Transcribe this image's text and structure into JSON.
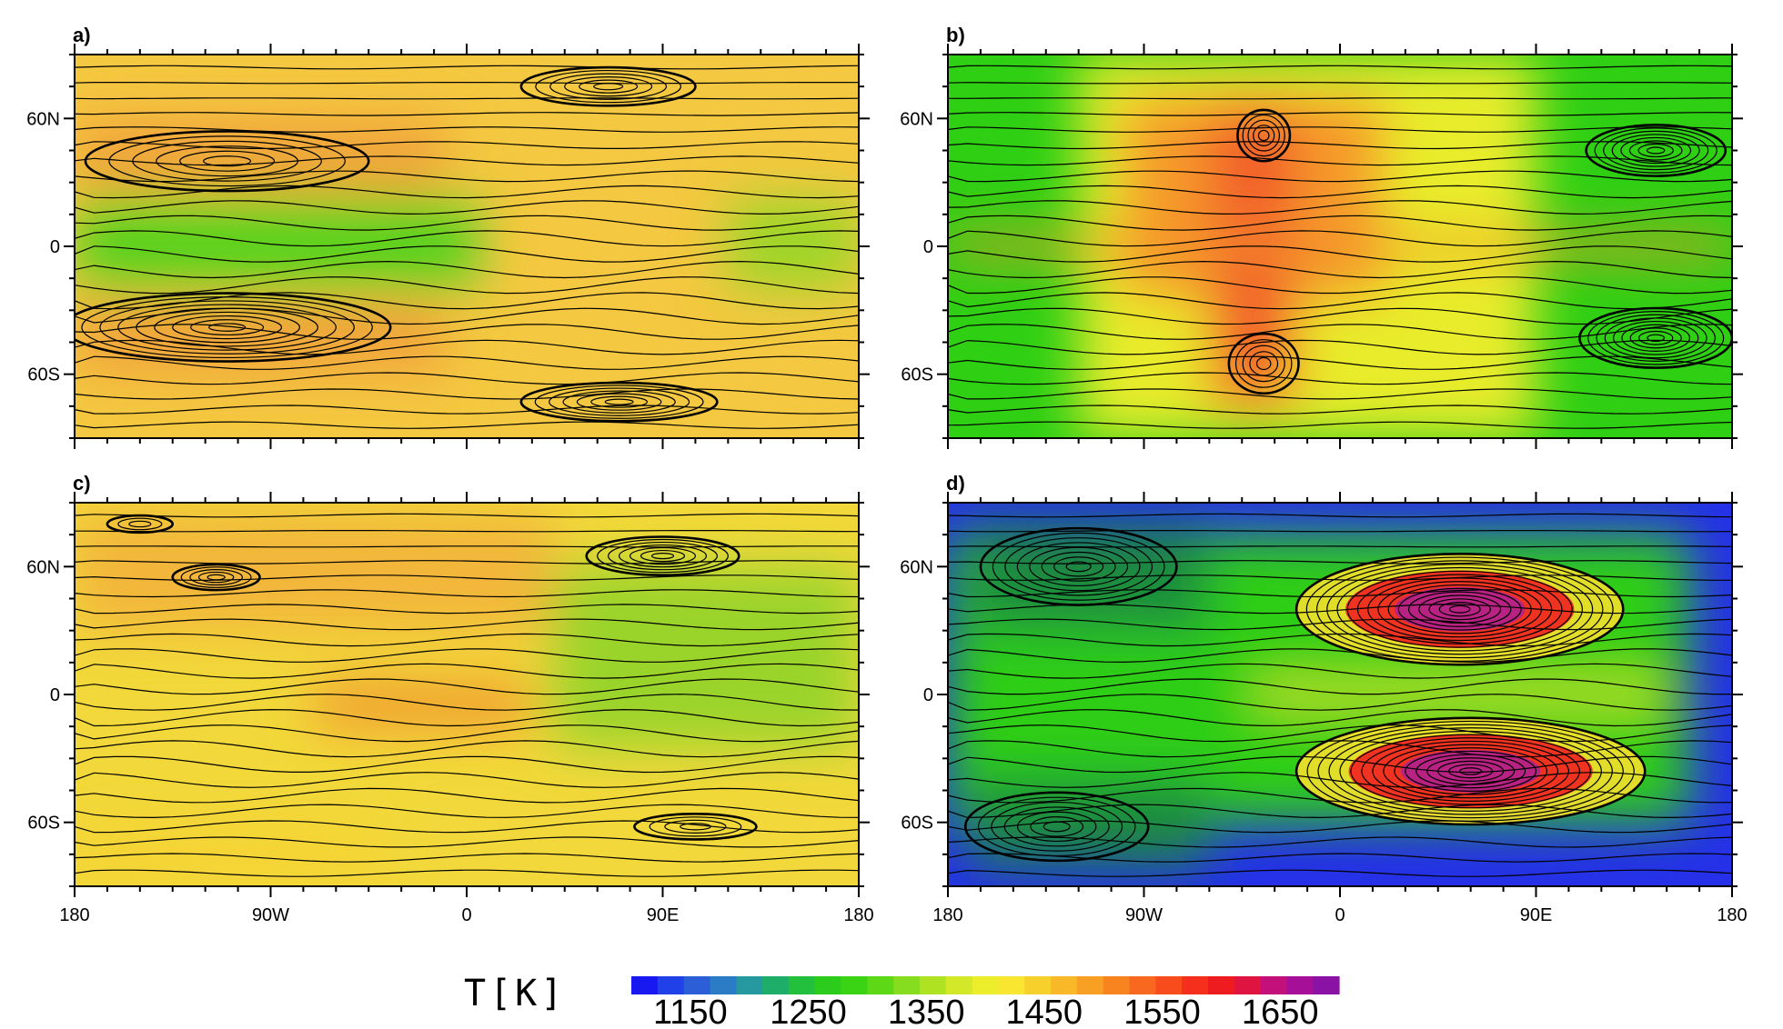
{
  "chart_data": [
    {
      "type": "heatmap",
      "panel_label": "a)",
      "xlabels": [
        "180",
        "90W",
        "0",
        "90E",
        "180"
      ],
      "ylabels": [
        "60N",
        "0",
        "60S"
      ],
      "xlim": [
        -180,
        180
      ],
      "ylim": [
        -90,
        90
      ],
      "fill": "#f4c840",
      "zones": [
        {
          "lon": [
            -180,
            5
          ],
          "lat": [
            -20,
            22
          ],
          "color": "#55d21e"
        },
        {
          "lon": [
            -180,
            -10
          ],
          "lat": [
            25,
            60
          ],
          "color": "#f1a43a"
        },
        {
          "lon": [
            -180,
            -10
          ],
          "lat": [
            -60,
            -25
          ],
          "color": "#f1a43a"
        },
        {
          "lon": [
            120,
            180
          ],
          "lat": [
            -20,
            22
          ],
          "color": "#9bd628"
        }
      ],
      "vortices": [
        {
          "lon": -110,
          "lat": 40,
          "rx": 65,
          "ry": 14,
          "rings": 6
        },
        {
          "lon": -110,
          "lat": -38,
          "rx": 75,
          "ry": 16,
          "rings": 9
        },
        {
          "lon": 65,
          "lat": 75,
          "rx": 40,
          "ry": 9,
          "rings": 6
        },
        {
          "lon": 70,
          "lat": -73,
          "rx": 45,
          "ry": 9,
          "rings": 7
        }
      ]
    },
    {
      "type": "heatmap",
      "panel_label": "b)",
      "xlabels": [
        "180",
        "90W",
        "0",
        "90E",
        "180"
      ],
      "ylabels": [
        "60N",
        "0",
        "60S"
      ],
      "xlim": [
        -180,
        180
      ],
      "ylim": [
        -90,
        90
      ],
      "fill": "#2fcf14",
      "zones": [
        {
          "lon": [
            -120,
            90
          ],
          "lat": [
            -90,
            90
          ],
          "color": "#e8ec2a"
        },
        {
          "lon": [
            -100,
            20
          ],
          "lat": [
            -25,
            70
          ],
          "color": "#f59a2a"
        },
        {
          "lon": [
            -60,
            -20
          ],
          "lat": [
            -75,
            70
          ],
          "color": "#f2602a"
        },
        {
          "lon": [
            -180,
            180
          ],
          "lat": [
            -5,
            5
          ],
          "color": "#f4942c"
        }
      ],
      "vortices": [
        {
          "lon": 145,
          "lat": 45,
          "rx": 32,
          "ry": 12,
          "rings": 8
        },
        {
          "lon": 145,
          "lat": -43,
          "rx": 35,
          "ry": 14,
          "rings": 9
        },
        {
          "lon": -35,
          "lat": 52,
          "rx": 12,
          "ry": 12,
          "rings": 5
        },
        {
          "lon": -35,
          "lat": -55,
          "rx": 16,
          "ry": 14,
          "rings": 5
        }
      ]
    },
    {
      "type": "heatmap",
      "panel_label": "c)",
      "xlabels": [
        "180",
        "90W",
        "0",
        "90E",
        "180"
      ],
      "ylabels": [
        "60N",
        "0",
        "60S"
      ],
      "xlim": [
        -180,
        180
      ],
      "ylim": [
        -90,
        90
      ],
      "fill": "#f2d83a",
      "zones": [
        {
          "lon": [
            40,
            180
          ],
          "lat": [
            -25,
            60
          ],
          "color": "#9ad42c"
        },
        {
          "lon": [
            -180,
            40
          ],
          "lat": [
            30,
            85
          ],
          "color": "#f2b63a"
        },
        {
          "lon": [
            -70,
            30
          ],
          "lat": [
            -15,
            5
          ],
          "color": "#f0962e"
        },
        {
          "lon": [
            -180,
            -40
          ],
          "lat": [
            -90,
            -60
          ],
          "color": "#f5d436"
        }
      ],
      "vortices": [
        {
          "lon": -115,
          "lat": 55,
          "rx": 20,
          "ry": 6,
          "rings": 5
        },
        {
          "lon": 90,
          "lat": 65,
          "rx": 35,
          "ry": 9,
          "rings": 7
        },
        {
          "lon": 105,
          "lat": -62,
          "rx": 28,
          "ry": 6,
          "rings": 4
        },
        {
          "lon": -150,
          "lat": 80,
          "rx": 15,
          "ry": 4,
          "rings": 3
        }
      ]
    },
    {
      "type": "heatmap",
      "panel_label": "d)",
      "xlabels": [
        "180",
        "90W",
        "0",
        "90E",
        "180"
      ],
      "ylabels": [
        "60N",
        "0",
        "60S"
      ],
      "xlim": [
        -180,
        180
      ],
      "ylim": [
        -90,
        90
      ],
      "fill": "#2530e8",
      "zones": [
        {
          "lon": [
            -180,
            160
          ],
          "lat": [
            -60,
            75
          ],
          "color": "#2fce18"
        },
        {
          "lon": [
            -170,
            -60
          ],
          "lat": [
            30,
            80
          ],
          "color": "#1f8a3c"
        },
        {
          "lon": [
            -170,
            -60
          ],
          "lat": [
            -80,
            -40
          ],
          "color": "#1f8a3c"
        },
        {
          "lon": [
            -40,
            150
          ],
          "lat": [
            -5,
            5
          ],
          "color": "#e6ec30"
        }
      ],
      "vortices": [
        {
          "lon": 55,
          "lat": 40,
          "rx": 75,
          "ry": 26,
          "rings": 16,
          "colors": [
            "#f5e02c",
            "#f22020",
            "#b0208e"
          ]
        },
        {
          "lon": 60,
          "lat": -36,
          "rx": 80,
          "ry": 25,
          "rings": 16,
          "colors": [
            "#f5e02c",
            "#f22020",
            "#b0208e"
          ]
        },
        {
          "lon": -120,
          "lat": 60,
          "rx": 45,
          "ry": 18,
          "rings": 8
        },
        {
          "lon": -130,
          "lat": -62,
          "rx": 42,
          "ry": 16,
          "rings": 7
        }
      ]
    }
  ],
  "colorbar": {
    "title": "T[K]",
    "ticks": [
      "1150",
      "1250",
      "1350",
      "1450",
      "1550",
      "1650"
    ],
    "tick_values": [
      1150,
      1250,
      1350,
      1450,
      1550,
      1650
    ],
    "range": [
      1100,
      1700
    ],
    "colors": [
      "#1818f0",
      "#2040e8",
      "#2c5ed8",
      "#2a7cc4",
      "#2598a0",
      "#1fae6a",
      "#22c03c",
      "#2ccc1c",
      "#3ad414",
      "#5cd816",
      "#86dc1e",
      "#b0e224",
      "#d2e828",
      "#ecee2c",
      "#f8e630",
      "#f8d02c",
      "#f8b828",
      "#f8a024",
      "#f88420",
      "#f8681e",
      "#f84c1c",
      "#f4301c",
      "#ee1c1e",
      "#e01440",
      "#c4107a",
      "#a61098",
      "#8a12a4"
    ]
  }
}
